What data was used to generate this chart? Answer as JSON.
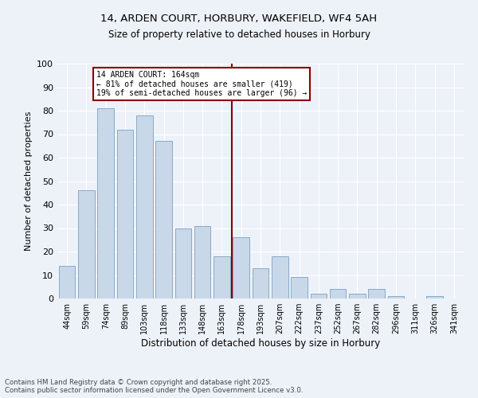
{
  "title1": "14, ARDEN COURT, HORBURY, WAKEFIELD, WF4 5AH",
  "title2": "Size of property relative to detached houses in Horbury",
  "xlabel": "Distribution of detached houses by size in Horbury",
  "ylabel": "Number of detached properties",
  "categories": [
    "44sqm",
    "59sqm",
    "74sqm",
    "89sqm",
    "103sqm",
    "118sqm",
    "133sqm",
    "148sqm",
    "163sqm",
    "178sqm",
    "193sqm",
    "207sqm",
    "222sqm",
    "237sqm",
    "252sqm",
    "267sqm",
    "282sqm",
    "296sqm",
    "311sqm",
    "326sqm",
    "341sqm"
  ],
  "values": [
    14,
    46,
    81,
    72,
    78,
    67,
    30,
    31,
    18,
    26,
    13,
    18,
    9,
    2,
    4,
    2,
    4,
    1,
    0,
    1,
    0
  ],
  "bar_color": "#c8d8e8",
  "bar_edge_color": "#88aac8",
  "vline_index": 8,
  "vline_color": "#8b0000",
  "annotation_title": "14 ARDEN COURT: 164sqm",
  "annotation_line1": "← 81% of detached houses are smaller (419)",
  "annotation_line2": "19% of semi-detached houses are larger (96) →",
  "annotation_box_color": "#8b0000",
  "ylim": [
    0,
    100
  ],
  "yticks": [
    0,
    10,
    20,
    30,
    40,
    50,
    60,
    70,
    80,
    90,
    100
  ],
  "footer1": "Contains HM Land Registry data © Crown copyright and database right 2025.",
  "footer2": "Contains public sector information licensed under the Open Government Licence v3.0.",
  "bg_color": "#edf2f9"
}
